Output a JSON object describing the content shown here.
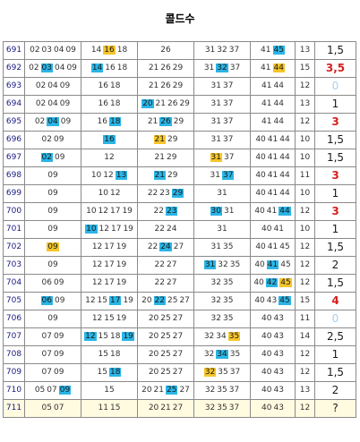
{
  "title": "콜드수",
  "rows": [
    {
      "no": "691",
      "c1": [
        [
          "02"
        ],
        [
          "03"
        ],
        [
          "04"
        ],
        [
          "09"
        ]
      ],
      "c2": [
        [
          "14"
        ],
        [
          "16",
          "y"
        ],
        [
          "18"
        ]
      ],
      "c3": [
        [
          "26"
        ]
      ],
      "c4": [
        [
          "31"
        ],
        [
          "32"
        ],
        [
          "37"
        ]
      ],
      "c5": [
        [
          "41"
        ],
        [
          "45",
          "b"
        ]
      ],
      "cnt": "13",
      "res": "1,5",
      "rs": ""
    },
    {
      "no": "692",
      "c1": [
        [
          "02"
        ],
        [
          "03",
          "b"
        ],
        [
          "04"
        ],
        [
          "09"
        ]
      ],
      "c2": [
        [
          "14",
          "b"
        ],
        [
          "16"
        ],
        [
          "18"
        ]
      ],
      "c3": [
        [
          "21"
        ],
        [
          "26"
        ],
        [
          "29"
        ]
      ],
      "c4": [
        [
          "31"
        ],
        [
          "32",
          "b"
        ],
        [
          "37"
        ]
      ],
      "c5": [
        [
          "41"
        ],
        [
          "44",
          "y"
        ]
      ],
      "cnt": "15",
      "res": "3,5",
      "rs": "red"
    },
    {
      "no": "693",
      "c1": [
        [
          "02"
        ],
        [
          "04"
        ],
        [
          "09"
        ]
      ],
      "c2": [
        [
          "16"
        ],
        [
          "18"
        ]
      ],
      "c3": [
        [
          "21"
        ],
        [
          "26"
        ],
        [
          "29"
        ]
      ],
      "c4": [
        [
          "31"
        ],
        [
          "37"
        ]
      ],
      "c5": [
        [
          "41"
        ],
        [
          "44"
        ]
      ],
      "cnt": "12",
      "res": "0",
      "rs": "lb"
    },
    {
      "no": "694",
      "c1": [
        [
          "02"
        ],
        [
          "04"
        ],
        [
          "09"
        ]
      ],
      "c2": [
        [
          "16"
        ],
        [
          "18"
        ]
      ],
      "c3": [
        [
          "20",
          "b"
        ],
        [
          "21"
        ],
        [
          "26"
        ],
        [
          "29"
        ]
      ],
      "c4": [
        [
          "31"
        ],
        [
          "37"
        ]
      ],
      "c5": [
        [
          "41"
        ],
        [
          "44"
        ]
      ],
      "cnt": "13",
      "res": "1",
      "rs": ""
    },
    {
      "no": "695",
      "c1": [
        [
          "02"
        ],
        [
          "04",
          "b"
        ],
        [
          "09"
        ]
      ],
      "c2": [
        [
          "16"
        ],
        [
          "18",
          "b"
        ]
      ],
      "c3": [
        [
          "21"
        ],
        [
          "26",
          "b"
        ],
        [
          "29"
        ]
      ],
      "c4": [
        [
          "31"
        ],
        [
          "37"
        ]
      ],
      "c5": [
        [
          "41"
        ],
        [
          "44"
        ]
      ],
      "cnt": "12",
      "res": "3",
      "rs": "red"
    },
    {
      "no": "696",
      "c1": [
        [
          "02"
        ],
        [
          "09"
        ]
      ],
      "c2": [
        [
          "16",
          "b"
        ]
      ],
      "c3": [
        [
          "21",
          "y"
        ],
        [
          "29"
        ]
      ],
      "c4": [
        [
          "31"
        ],
        [
          "37"
        ]
      ],
      "c5": [
        [
          "40"
        ],
        [
          "41"
        ],
        [
          "44"
        ]
      ],
      "cnt": "10",
      "res": "1,5",
      "rs": ""
    },
    {
      "no": "697",
      "c1": [
        [
          "02",
          "b"
        ],
        [
          "09"
        ]
      ],
      "c2": [
        [
          "12"
        ]
      ],
      "c3": [
        [
          "21"
        ],
        [
          "29"
        ]
      ],
      "c4": [
        [
          "31",
          "y"
        ],
        [
          "37"
        ]
      ],
      "c5": [
        [
          "40"
        ],
        [
          "41"
        ],
        [
          "44"
        ]
      ],
      "cnt": "10",
      "res": "1,5",
      "rs": ""
    },
    {
      "no": "698",
      "c1": [
        [
          "09"
        ]
      ],
      "c2": [
        [
          "10"
        ],
        [
          "12"
        ],
        [
          "13",
          "b"
        ]
      ],
      "c3": [
        [
          "21",
          "b"
        ],
        [
          "29"
        ]
      ],
      "c4": [
        [
          "31"
        ],
        [
          "37",
          "b"
        ]
      ],
      "c5": [
        [
          "40"
        ],
        [
          "41"
        ],
        [
          "44"
        ]
      ],
      "cnt": "11",
      "res": "3",
      "rs": "red"
    },
    {
      "no": "699",
      "c1": [
        [
          "09"
        ]
      ],
      "c2": [
        [
          "10"
        ],
        [
          "12"
        ]
      ],
      "c3": [
        [
          "22"
        ],
        [
          "23"
        ],
        [
          "29",
          "b"
        ]
      ],
      "c4": [
        [
          "31"
        ]
      ],
      "c5": [
        [
          "40"
        ],
        [
          "41"
        ],
        [
          "44"
        ]
      ],
      "cnt": "10",
      "res": "1",
      "rs": ""
    },
    {
      "no": "700",
      "c1": [
        [
          "09"
        ]
      ],
      "c2": [
        [
          "10"
        ],
        [
          "12"
        ],
        [
          "17"
        ],
        [
          "19"
        ]
      ],
      "c3": [
        [
          "22"
        ],
        [
          "23",
          "b"
        ]
      ],
      "c4": [
        [
          "30",
          "b"
        ],
        [
          "31"
        ]
      ],
      "c5": [
        [
          "40"
        ],
        [
          "41"
        ],
        [
          "44",
          "b"
        ]
      ],
      "cnt": "12",
      "res": "3",
      "rs": "red"
    },
    {
      "no": "701",
      "c1": [
        [
          "09"
        ]
      ],
      "c2": [
        [
          "10",
          "b"
        ],
        [
          "12"
        ],
        [
          "17"
        ],
        [
          "19"
        ]
      ],
      "c3": [
        [
          "22"
        ],
        [
          "24"
        ]
      ],
      "c4": [
        [
          "31"
        ]
      ],
      "c5": [
        [
          "40"
        ],
        [
          "41"
        ]
      ],
      "cnt": "10",
      "res": "1",
      "rs": ""
    },
    {
      "no": "702",
      "c1": [
        [
          "09",
          "y"
        ]
      ],
      "c2": [
        [
          "12"
        ],
        [
          "17"
        ],
        [
          "19"
        ]
      ],
      "c3": [
        [
          "22"
        ],
        [
          "24",
          "b"
        ],
        [
          "27"
        ]
      ],
      "c4": [
        [
          "31"
        ],
        [
          "35"
        ]
      ],
      "c5": [
        [
          "40"
        ],
        [
          "41"
        ],
        [
          "45"
        ]
      ],
      "cnt": "12",
      "res": "1,5",
      "rs": ""
    },
    {
      "no": "703",
      "c1": [
        [
          "09"
        ]
      ],
      "c2": [
        [
          "12"
        ],
        [
          "17"
        ],
        [
          "19"
        ]
      ],
      "c3": [
        [
          "22"
        ],
        [
          "27"
        ]
      ],
      "c4": [
        [
          "31",
          "b"
        ],
        [
          "32"
        ],
        [
          "35"
        ]
      ],
      "c5": [
        [
          "40"
        ],
        [
          "41",
          "b"
        ],
        [
          "45"
        ]
      ],
      "cnt": "12",
      "res": "2",
      "rs": ""
    },
    {
      "no": "704",
      "c1": [
        [
          "06"
        ],
        [
          "09"
        ]
      ],
      "c2": [
        [
          "12"
        ],
        [
          "17"
        ],
        [
          "19"
        ]
      ],
      "c3": [
        [
          "22"
        ],
        [
          "27"
        ]
      ],
      "c4": [
        [
          "32"
        ],
        [
          "35"
        ]
      ],
      "c5": [
        [
          "40"
        ],
        [
          "42",
          "b"
        ],
        [
          "45",
          "y"
        ]
      ],
      "cnt": "12",
      "res": "1,5",
      "rs": ""
    },
    {
      "no": "705",
      "c1": [
        [
          "06",
          "b"
        ],
        [
          "09"
        ]
      ],
      "c2": [
        [
          "12"
        ],
        [
          "15"
        ],
        [
          "17",
          "b"
        ],
        [
          "19"
        ]
      ],
      "c3": [
        [
          "20"
        ],
        [
          "22",
          "b"
        ],
        [
          "25"
        ],
        [
          "27"
        ]
      ],
      "c4": [
        [
          "32"
        ],
        [
          "35"
        ]
      ],
      "c5": [
        [
          "40"
        ],
        [
          "43"
        ],
        [
          "45",
          "b"
        ]
      ],
      "cnt": "15",
      "res": "4",
      "rs": "red"
    },
    {
      "no": "706",
      "c1": [
        [
          "09"
        ]
      ],
      "c2": [
        [
          "12"
        ],
        [
          "15"
        ],
        [
          "19"
        ]
      ],
      "c3": [
        [
          "20"
        ],
        [
          "25"
        ],
        [
          "27"
        ]
      ],
      "c4": [
        [
          "32"
        ],
        [
          "35"
        ]
      ],
      "c5": [
        [
          "40"
        ],
        [
          "43"
        ]
      ],
      "cnt": "11",
      "res": "0",
      "rs": "lb"
    },
    {
      "no": "707",
      "c1": [
        [
          "07"
        ],
        [
          "09"
        ]
      ],
      "c2": [
        [
          "12",
          "b"
        ],
        [
          "15"
        ],
        [
          "18"
        ],
        [
          "19",
          "b"
        ]
      ],
      "c3": [
        [
          "20"
        ],
        [
          "25"
        ],
        [
          "27"
        ]
      ],
      "c4": [
        [
          "32"
        ],
        [
          "34"
        ],
        [
          "35",
          "y"
        ]
      ],
      "c5": [
        [
          "40"
        ],
        [
          "43"
        ]
      ],
      "cnt": "14",
      "res": "2,5",
      "rs": ""
    },
    {
      "no": "708",
      "c1": [
        [
          "07"
        ],
        [
          "09"
        ]
      ],
      "c2": [
        [
          "15"
        ],
        [
          "18"
        ]
      ],
      "c3": [
        [
          "20"
        ],
        [
          "25"
        ],
        [
          "27"
        ]
      ],
      "c4": [
        [
          "32"
        ],
        [
          "34",
          "b"
        ],
        [
          "35"
        ]
      ],
      "c5": [
        [
          "40"
        ],
        [
          "43"
        ]
      ],
      "cnt": "12",
      "res": "1",
      "rs": ""
    },
    {
      "no": "709",
      "c1": [
        [
          "07"
        ],
        [
          "09"
        ]
      ],
      "c2": [
        [
          "15"
        ],
        [
          "18",
          "b"
        ]
      ],
      "c3": [
        [
          "20"
        ],
        [
          "25"
        ],
        [
          "27"
        ]
      ],
      "c4": [
        [
          "32",
          "y"
        ],
        [
          "35"
        ],
        [
          "37"
        ]
      ],
      "c5": [
        [
          "40"
        ],
        [
          "43"
        ]
      ],
      "cnt": "12",
      "res": "1,5",
      "rs": ""
    },
    {
      "no": "710",
      "c1": [
        [
          "05"
        ],
        [
          "07"
        ],
        [
          "09",
          "b"
        ]
      ],
      "c2": [
        [
          "15"
        ]
      ],
      "c3": [
        [
          "20"
        ],
        [
          "21"
        ],
        [
          "25",
          "b"
        ],
        [
          "27"
        ]
      ],
      "c4": [
        [
          "32"
        ],
        [
          "35"
        ],
        [
          "37"
        ]
      ],
      "c5": [
        [
          "40"
        ],
        [
          "43"
        ]
      ],
      "cnt": "13",
      "res": "2",
      "rs": ""
    },
    {
      "no": "711",
      "c1": [
        [
          "05"
        ],
        [
          "07"
        ]
      ],
      "c2": [
        [
          "11"
        ],
        [
          "15"
        ]
      ],
      "c3": [
        [
          "20"
        ],
        [
          "21"
        ],
        [
          "27"
        ]
      ],
      "c4": [
        [
          "32"
        ],
        [
          "35"
        ],
        [
          "37"
        ]
      ],
      "c5": [
        [
          "40"
        ],
        [
          "43"
        ]
      ],
      "cnt": "12",
      "res": "?",
      "rs": ""
    }
  ]
}
